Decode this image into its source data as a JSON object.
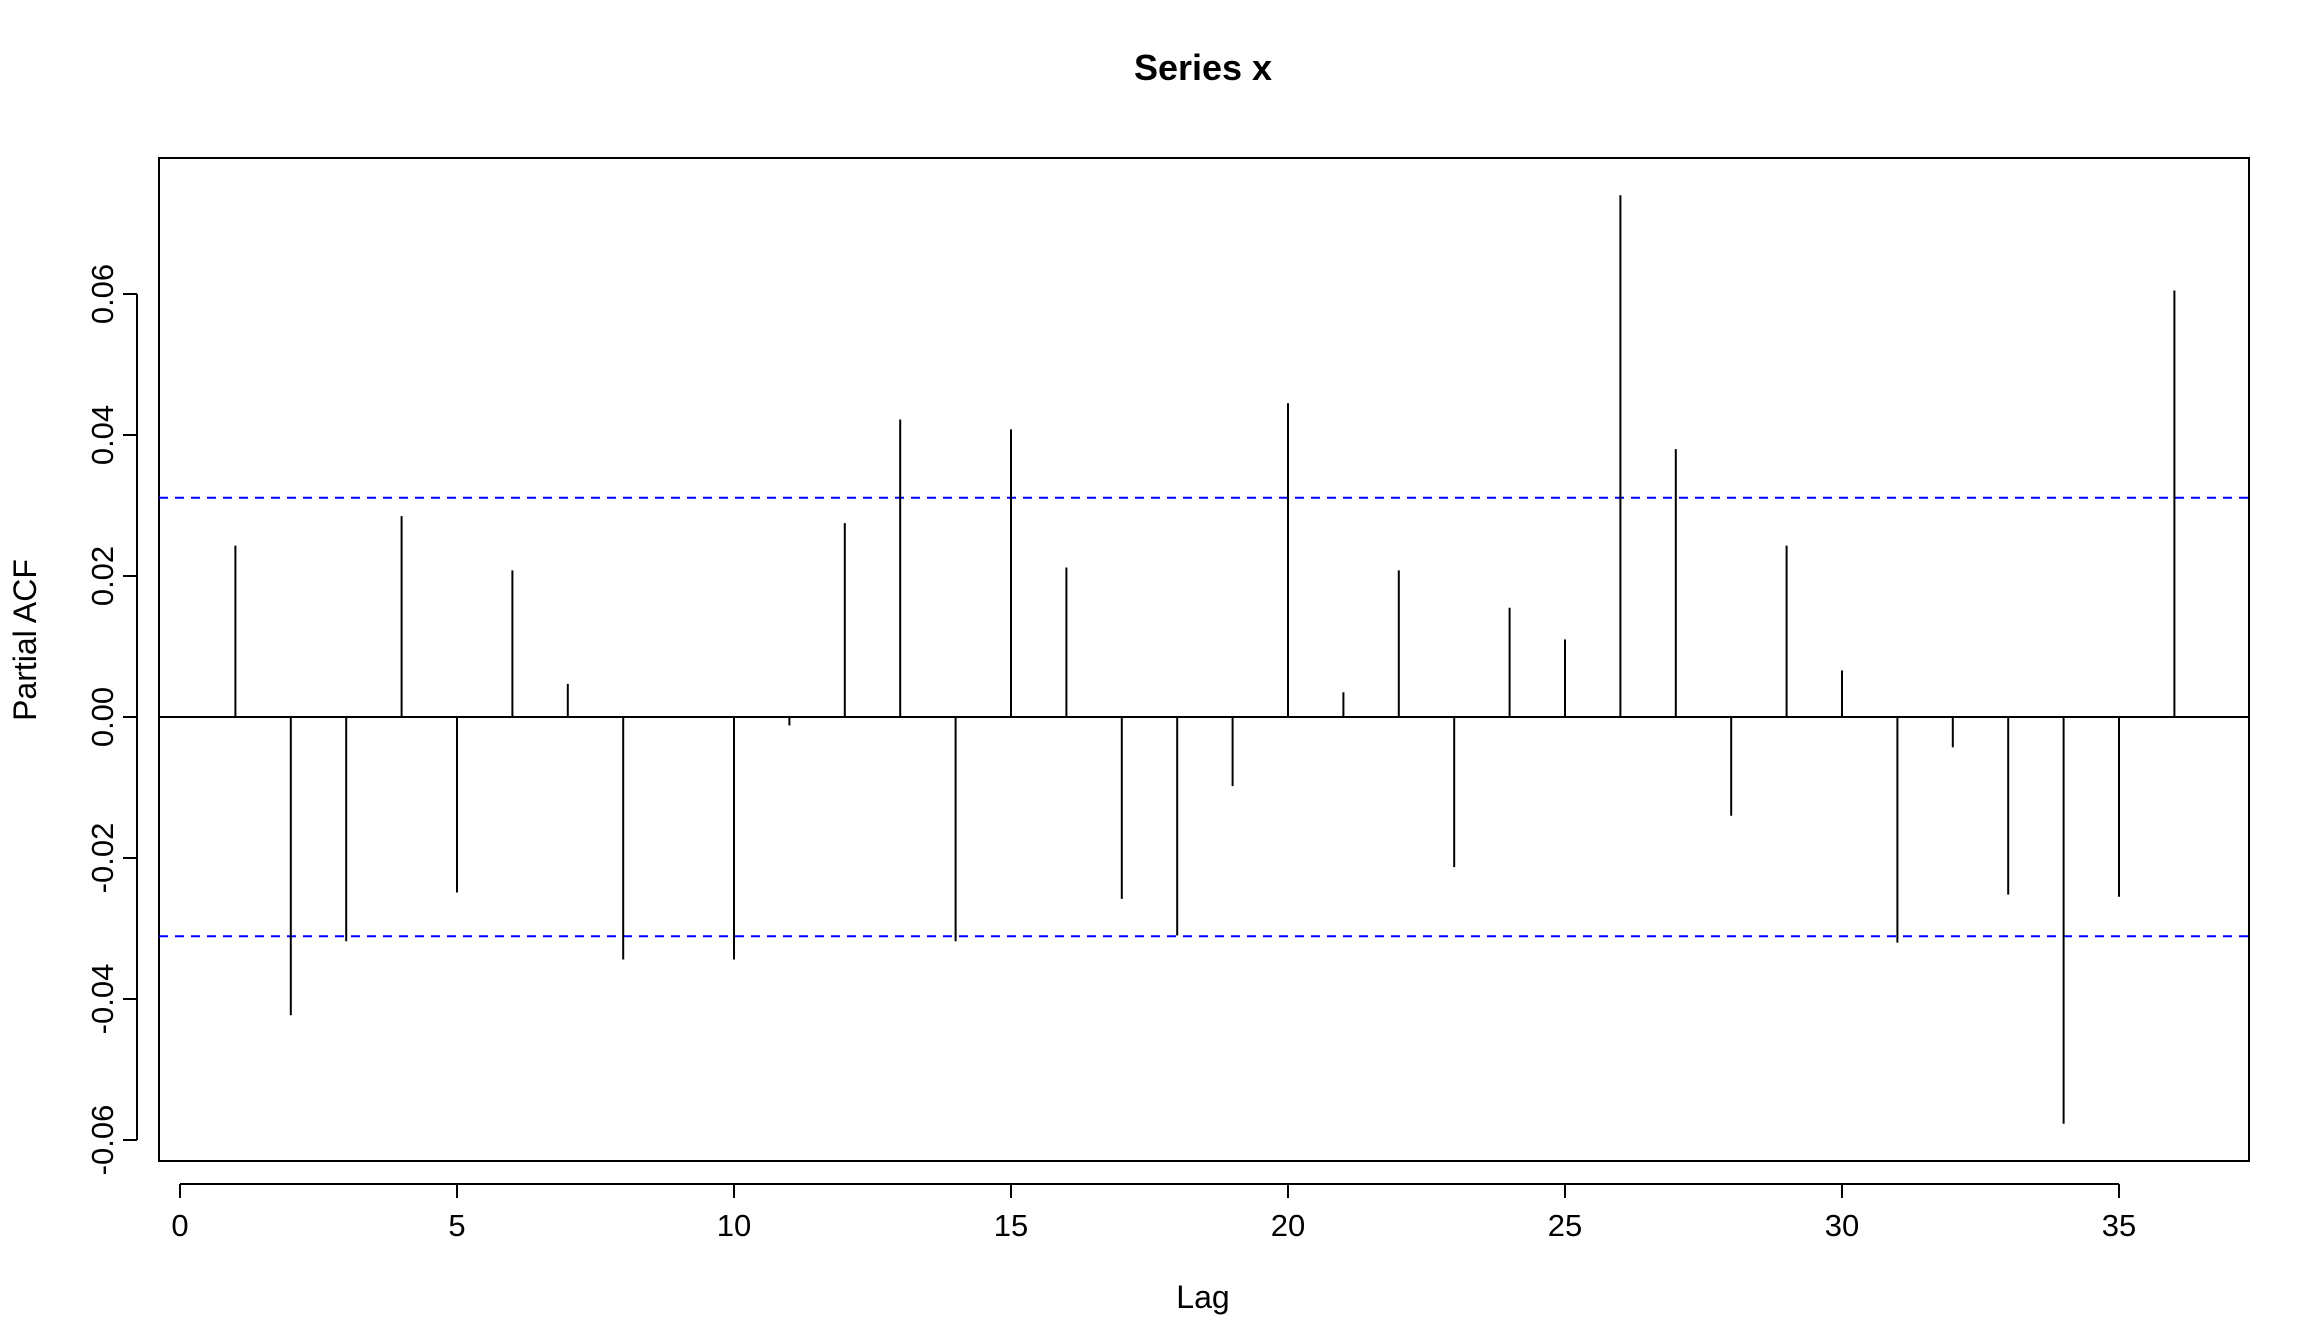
{
  "chart_data": {
    "type": "bar",
    "title": "Series  x",
    "xlabel": "Lag",
    "ylabel": "Partial ACF",
    "xlim": [
      -0.5,
      37.5
    ],
    "ylim": [
      -0.065,
      0.08
    ],
    "x_ticks": [
      0,
      5,
      10,
      15,
      20,
      25,
      30,
      35
    ],
    "x_tick_labels": [
      "0",
      "5",
      "10",
      "15",
      "20",
      "25",
      "30",
      "35"
    ],
    "y_ticks": [
      -0.06,
      -0.04,
      -0.02,
      0.0,
      0.02,
      0.04,
      0.06
    ],
    "y_tick_labels": [
      "-0.06",
      "-0.04",
      "-0.02",
      "0.00",
      "0.02",
      "0.04",
      "0.06"
    ],
    "lags": [
      1,
      2,
      3,
      4,
      5,
      6,
      7,
      8,
      9,
      10,
      11,
      12,
      13,
      14,
      15,
      16,
      17,
      18,
      19,
      20,
      21,
      22,
      23,
      24,
      25,
      26,
      27,
      28,
      29,
      30,
      31,
      32,
      33,
      34,
      35,
      36
    ],
    "values": [
      0.0243,
      -0.0423,
      -0.0318,
      0.0285,
      -0.0249,
      0.0208,
      0.0047,
      -0.0344,
      0.0,
      -0.0344,
      -0.0012,
      0.0275,
      0.0422,
      -0.0318,
      0.0408,
      0.0212,
      -0.0258,
      -0.031,
      -0.0098,
      0.0445,
      0.0035,
      0.0208,
      -0.0213,
      0.0155,
      0.011,
      0.074,
      0.038,
      -0.014,
      0.0243,
      0.0066,
      -0.032,
      -0.0043,
      -0.0252,
      -0.0577,
      -0.0255,
      0.0605
    ],
    "confidence_limits": [
      0.0311,
      -0.0311
    ],
    "colors": {
      "bars": "#000000",
      "confidence": "#0000ff",
      "zero_line": "#000000",
      "frame": "#000000"
    },
    "grid": false
  }
}
